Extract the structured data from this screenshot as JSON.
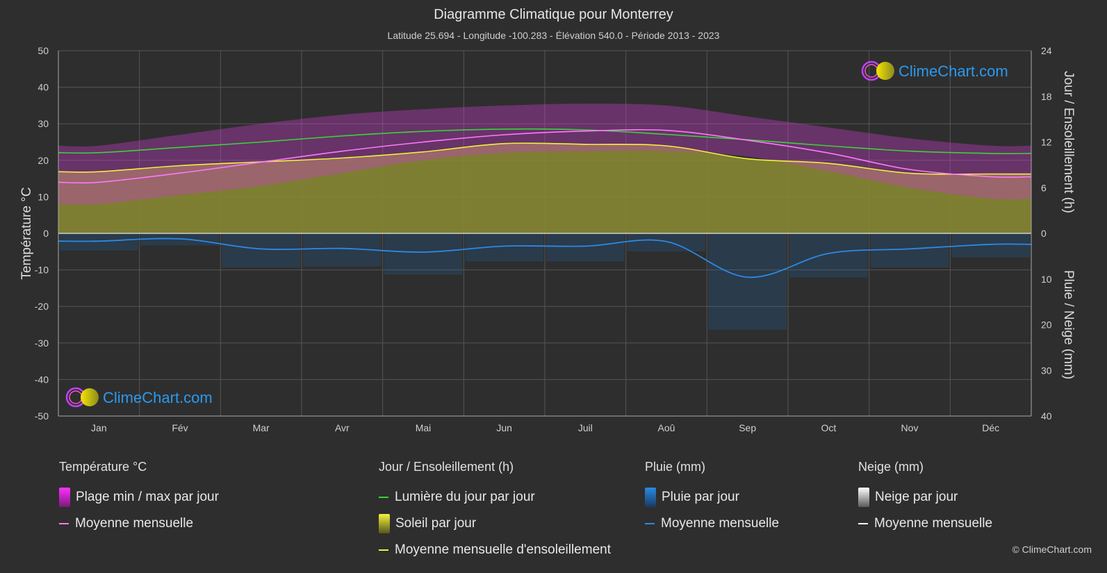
{
  "header": {
    "title": "Diagramme Climatique pour Monterrey",
    "subtitle": "Latitude 25.694 - Longitude -100.283 - Élévation 540.0 - Période 2013 - 2023"
  },
  "logo_text": "ClimeChart.com",
  "copyright": "© ClimeChart.com",
  "colors": {
    "background": "#2e2e2e",
    "grid": "#555555",
    "temp_range": "#c83cc8",
    "temp_mean": "#ff78ff",
    "daylight": "#3ad23a",
    "sunshine_fill": "#8c8c32",
    "sunshine_mean": "#f0f03c",
    "rain": "#1e6eb4",
    "rain_mean": "#2a8ae6",
    "snow_mean": "#ffffff",
    "logo_text": "#2a9af0"
  },
  "legend": {
    "temperature": {
      "heading": "Température °C",
      "items": [
        "Plage min / max par jour",
        "Moyenne mensuelle"
      ]
    },
    "sun": {
      "heading": "Jour / Ensoleillement (h)",
      "items": [
        "Lumière du jour par jour",
        "Soleil par jour",
        "Moyenne mensuelle d'ensoleillement"
      ]
    },
    "rain": {
      "heading": "Pluie (mm)",
      "items": [
        "Pluie par jour",
        "Moyenne mensuelle"
      ]
    },
    "snow": {
      "heading": "Neige (mm)",
      "items": [
        "Neige par jour",
        "Moyenne mensuelle"
      ]
    }
  },
  "chart_data": {
    "type": "area",
    "categories": [
      "Jan",
      "Fév",
      "Mar",
      "Avr",
      "Mai",
      "Jun",
      "Juil",
      "Aoû",
      "Sep",
      "Oct",
      "Nov",
      "Déc"
    ],
    "y_left": {
      "label": "Température °C",
      "range": [
        -50,
        50
      ],
      "ticks": [
        50,
        40,
        30,
        20,
        10,
        0,
        -10,
        -20,
        -30,
        -40,
        -50
      ]
    },
    "y_right_top": {
      "label": "Jour / Ensoleillement (h)",
      "range": [
        0,
        24
      ],
      "ticks": [
        24,
        18,
        12,
        6,
        0
      ]
    },
    "y_right_bottom": {
      "label": "Pluie / Neige (mm)",
      "range": [
        0,
        40
      ],
      "ticks": [
        0,
        10,
        20,
        30,
        40
      ]
    },
    "grid": true,
    "series": [
      {
        "name": "Moyenne mensuelle",
        "kind": "temperature_mean",
        "values": [
          14.0,
          16.5,
          19.5,
          22.5,
          25.0,
          27.0,
          28.0,
          28.2,
          25.5,
          22.0,
          17.5,
          15.5
        ]
      },
      {
        "name": "Plage min / max par jour",
        "kind": "temperature_max",
        "values": [
          24.0,
          27.0,
          30.0,
          32.5,
          34.0,
          35.0,
          35.5,
          35.0,
          32.0,
          29.0,
          26.0,
          24.0
        ]
      },
      {
        "name": "Plage min / max par jour",
        "kind": "temperature_min",
        "values": [
          8.0,
          10.5,
          13.0,
          16.5,
          20.0,
          22.0,
          22.5,
          22.5,
          21.0,
          17.0,
          12.5,
          9.5
        ]
      },
      {
        "name": "Lumière du jour par jour",
        "kind": "daylight_hours",
        "values": [
          10.6,
          11.3,
          12.0,
          12.8,
          13.4,
          13.7,
          13.6,
          13.0,
          12.3,
          11.5,
          10.8,
          10.5
        ]
      },
      {
        "name": "Moyenne mensuelle d'ensoleillement",
        "kind": "sunshine_hours",
        "values": [
          8.1,
          8.9,
          9.4,
          9.9,
          10.7,
          11.8,
          11.7,
          11.5,
          9.8,
          9.2,
          7.9,
          7.8
        ]
      },
      {
        "name": "Moyenne mensuelle",
        "kind": "rain_mm",
        "values": [
          1.7,
          1.2,
          3.4,
          3.3,
          4.1,
          2.8,
          2.8,
          1.8,
          9.6,
          4.4,
          3.4,
          2.4
        ]
      },
      {
        "name": "Moyenne mensuelle",
        "kind": "snow_mm",
        "values": [
          0,
          0,
          0,
          0,
          0,
          0,
          0,
          0,
          0,
          0,
          0,
          0
        ]
      }
    ]
  }
}
